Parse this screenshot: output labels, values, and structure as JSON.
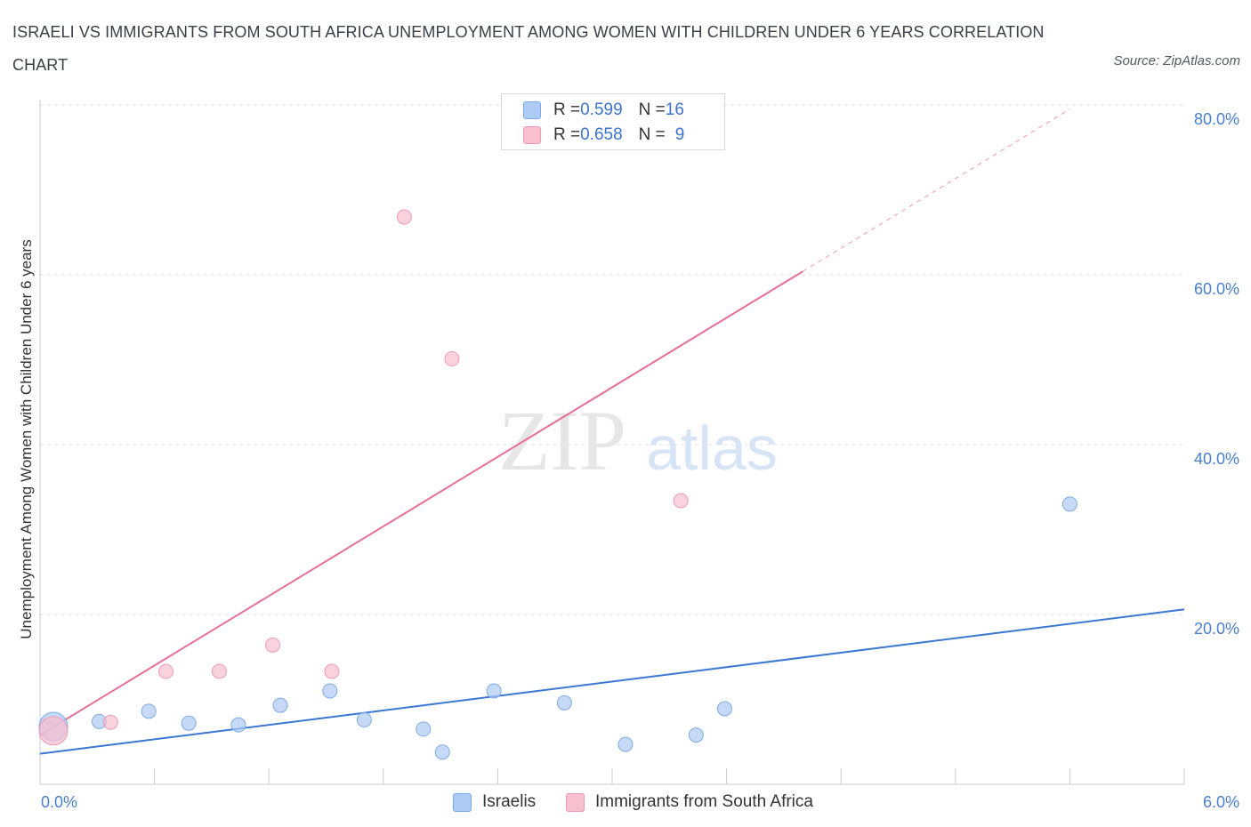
{
  "header": {
    "title": "ISRAELI VS IMMIGRANTS FROM SOUTH AFRICA UNEMPLOYMENT AMONG WOMEN WITH CHILDREN UNDER 6 YEARS CORRELATION CHART",
    "source": "Source: ZipAtlas.com"
  },
  "watermark": {
    "zip": "ZIP",
    "atlas": "atlas"
  },
  "stats_legend": {
    "rows": [
      {
        "r_label": "R = ",
        "r_value": "0.599",
        "n_label": "N = ",
        "n_value": "16",
        "color": "#aecbf5"
      },
      {
        "r_label": "R = ",
        "r_value": "0.658",
        "n_label": "N = ",
        "n_value": "9",
        "color": "#f7bfd0"
      }
    ]
  },
  "bottom_legend": {
    "items": [
      {
        "label": "Israelis",
        "color": "#aecbf5"
      },
      {
        "label": "Immigrants from South Africa",
        "color": "#f7bfd0"
      }
    ]
  },
  "chart_data": {
    "type": "scatter",
    "title": "ISRAELI VS IMMIGRANTS FROM SOUTH AFRICA UNEMPLOYMENT AMONG WOMEN WITH CHILDREN UNDER 6 YEARS CORRELATION CHART",
    "xlabel": "",
    "ylabel": "Unemployment Among Women with Children Under 6 years",
    "xlim": [
      0,
      6
    ],
    "ylim": [
      0,
      80
    ],
    "x_tick_labels": [
      "0.0%",
      "6.0%"
    ],
    "y_ticks": [
      20,
      40,
      60,
      80
    ],
    "y_tick_labels": [
      "20.0%",
      "40.0%",
      "60.0%",
      "80.0%"
    ],
    "grid": true,
    "series": [
      {
        "name": "Israelis",
        "color": "#aecbf5",
        "stroke": "#7eaae6",
        "trend_color": "#3b78d3",
        "trend": {
          "x0": 0.0,
          "y0": 3.6,
          "x1": 6.0,
          "y1": 20.6,
          "dashed_to": 6.0
        },
        "points": [
          {
            "x": 0.07,
            "y": 6.8,
            "big": true
          },
          {
            "x": 0.31,
            "y": 7.4
          },
          {
            "x": 0.57,
            "y": 8.6
          },
          {
            "x": 0.78,
            "y": 7.2
          },
          {
            "x": 1.04,
            "y": 7.0
          },
          {
            "x": 1.26,
            "y": 9.3
          },
          {
            "x": 1.52,
            "y": 11.0
          },
          {
            "x": 1.7,
            "y": 7.6
          },
          {
            "x": 2.01,
            "y": 6.5
          },
          {
            "x": 2.11,
            "y": 3.8
          },
          {
            "x": 2.38,
            "y": 11.0
          },
          {
            "x": 2.75,
            "y": 9.6
          },
          {
            "x": 3.07,
            "y": 4.7
          },
          {
            "x": 3.44,
            "y": 5.8
          },
          {
            "x": 3.59,
            "y": 8.9
          },
          {
            "x": 5.4,
            "y": 33.0
          }
        ]
      },
      {
        "name": "Immigrants from South Africa",
        "color": "#f7bfd0",
        "stroke": "#ee9ab3",
        "trend_color": "#e56f96",
        "trend": {
          "x0": 0.0,
          "y0": 5.8,
          "x1": 4.0,
          "y1": 60.4,
          "dashed_to": 5.4
        },
        "points": [
          {
            "x": 0.07,
            "y": 6.3,
            "big": true
          },
          {
            "x": 0.37,
            "y": 7.3
          },
          {
            "x": 0.66,
            "y": 13.3
          },
          {
            "x": 0.94,
            "y": 13.3
          },
          {
            "x": 1.22,
            "y": 16.4
          },
          {
            "x": 1.53,
            "y": 13.3
          },
          {
            "x": 1.91,
            "y": 66.8
          },
          {
            "x": 2.16,
            "y": 50.1
          },
          {
            "x": 3.36,
            "y": 33.4
          }
        ]
      }
    ]
  }
}
